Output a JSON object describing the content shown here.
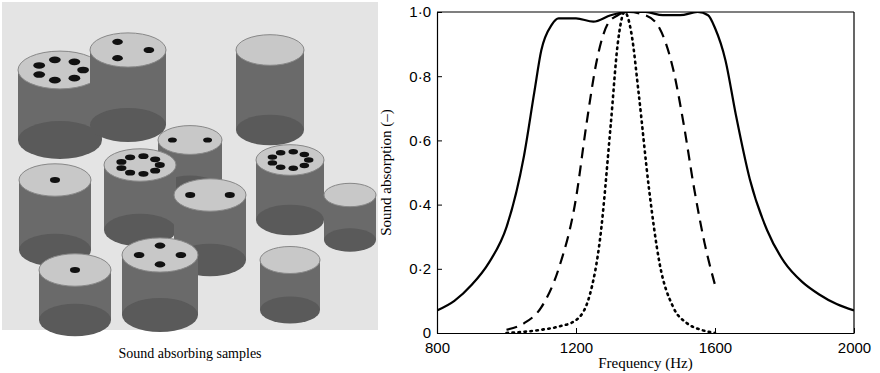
{
  "chart_data": {
    "type": "line",
    "xlabel": "Frequency (Hz)",
    "ylabel": "Sound absorption (–)",
    "xlim": [
      800,
      2000
    ],
    "xticks": [
      800,
      1200,
      1600,
      2000
    ],
    "ylim": [
      0,
      1
    ],
    "yticks": [
      0,
      {
        "value": 0.2,
        "label": "0·2"
      },
      {
        "value": 0.4,
        "label": "0·4"
      },
      {
        "value": 0.6,
        "label": "0·6"
      },
      {
        "value": 0.8,
        "label": "0·8"
      },
      {
        "value": 1,
        "label": "1·0"
      }
    ],
    "grid": false,
    "series": [
      {
        "color": "#000000",
        "line_style": "solid",
        "x": [
          800,
          850,
          900,
          950,
          1000,
          1050,
          1080,
          1100,
          1130,
          1150,
          1200,
          1250,
          1300,
          1350,
          1400,
          1450,
          1500,
          1550,
          1580,
          1600,
          1630,
          1660,
          1700,
          1750,
          1800,
          1850,
          1900,
          1950,
          2000
        ],
        "values": [
          0.07,
          0.1,
          0.15,
          0.22,
          0.33,
          0.55,
          0.75,
          0.88,
          0.96,
          0.98,
          0.98,
          0.97,
          0.99,
          1.0,
          1.0,
          0.99,
          0.99,
          1.0,
          0.99,
          0.95,
          0.85,
          0.68,
          0.48,
          0.32,
          0.22,
          0.16,
          0.12,
          0.09,
          0.07
        ]
      },
      {
        "color": "#000000",
        "line_style": "dashed",
        "x": [
          1000,
          1050,
          1100,
          1150,
          1200,
          1230,
          1260,
          1290,
          1320,
          1350,
          1400,
          1440,
          1480,
          1510,
          1540,
          1570,
          1600
        ],
        "values": [
          0.01,
          0.03,
          0.08,
          0.2,
          0.42,
          0.65,
          0.85,
          0.96,
          0.99,
          1.0,
          0.99,
          0.95,
          0.82,
          0.65,
          0.45,
          0.28,
          0.15
        ]
      },
      {
        "color": "#000000",
        "line_style": "dotted",
        "x": [
          1000,
          1100,
          1150,
          1200,
          1240,
          1270,
          1300,
          1320,
          1340,
          1360,
          1380,
          1410,
          1440,
          1480,
          1520,
          1560,
          1600
        ],
        "values": [
          0,
          0.01,
          0.02,
          0.04,
          0.12,
          0.3,
          0.65,
          0.9,
          1.0,
          0.93,
          0.75,
          0.45,
          0.22,
          0.08,
          0.03,
          0.01,
          0
        ]
      }
    ]
  },
  "photo": {
    "caption": "Sound absorbing samples"
  }
}
